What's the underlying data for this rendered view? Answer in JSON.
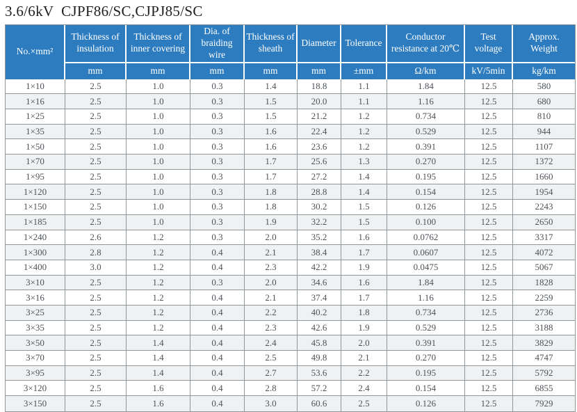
{
  "title": "3.6/6kV  CJPF86/SC,CJPJ85/SC",
  "colors": {
    "header_bg": "#2d7cbf",
    "header_text": "#ffffff",
    "row_alt_bg": "#f0f1f2",
    "border": "#8f9699",
    "body_text": "#4e5358",
    "title_text": "#1f1f1f"
  },
  "table": {
    "columns": [
      {
        "label": "No.×mm²"
      },
      {
        "label": "Thickness of insulation",
        "unit": "mm"
      },
      {
        "label": "Thickness of inner covering",
        "unit": "mm"
      },
      {
        "label": "Dia. of braiding wire",
        "unit": "mm"
      },
      {
        "label": "Thickness of sheath",
        "unit": "mm"
      },
      {
        "label": "Diameter",
        "unit": "mm"
      },
      {
        "label": "Tolerance",
        "unit": "±mm"
      },
      {
        "label": "Conductor resistance at 20℃",
        "unit": "Ω/km"
      },
      {
        "label": "Test voltage",
        "unit": "kV/5min"
      },
      {
        "label": "Approx. Weight",
        "unit": "kg/km"
      }
    ],
    "rows": [
      [
        "1×10",
        "2.5",
        "1.0",
        "0.3",
        "1.4",
        "18.8",
        "1.1",
        "1.84",
        "12.5",
        "580"
      ],
      [
        "1×16",
        "2.5",
        "1.0",
        "0.3",
        "1.5",
        "20.0",
        "1.1",
        "1.16",
        "12.5",
        "680"
      ],
      [
        "1×25",
        "2.5",
        "1.0",
        "0.3",
        "1.5",
        "21.2",
        "1.2",
        "0.734",
        "12.5",
        "810"
      ],
      [
        "1×35",
        "2.5",
        "1.0",
        "0.3",
        "1.6",
        "22.4",
        "1.2",
        "0.529",
        "12.5",
        "944"
      ],
      [
        "1×50",
        "2.5",
        "1.0",
        "0.3",
        "1.6",
        "23.6",
        "1.2",
        "0.391",
        "12.5",
        "1107"
      ],
      [
        "1×70",
        "2.5",
        "1.0",
        "0.3",
        "1.7",
        "25.6",
        "1.3",
        "0.270",
        "12.5",
        "1372"
      ],
      [
        "1×95",
        "2.5",
        "1.0",
        "0.3",
        "1.7",
        "27.2",
        "1.4",
        "0.195",
        "12.5",
        "1660"
      ],
      [
        "1×120",
        "2.5",
        "1.0",
        "0.3",
        "1.8",
        "28.8",
        "1.4",
        "0.154",
        "12.5",
        "1954"
      ],
      [
        "1×150",
        "2.5",
        "1.0",
        "0.3",
        "1.8",
        "30.2",
        "1.5",
        "0.126",
        "12.5",
        "2243"
      ],
      [
        "1×185",
        "2.5",
        "1.0",
        "0.3",
        "1.9",
        "32.2",
        "1.5",
        "0.100",
        "12.5",
        "2650"
      ],
      [
        "1×240",
        "2.6",
        "1.2",
        "0.3",
        "2.0",
        "35.2",
        "1.6",
        "0.0762",
        "12.5",
        "3317"
      ],
      [
        "1×300",
        "2.8",
        "1.2",
        "0.4",
        "2.1",
        "38.4",
        "1.7",
        "0.0607",
        "12.5",
        "4072"
      ],
      [
        "1×400",
        "3.0",
        "1.2",
        "0.4",
        "2.3",
        "42.2",
        "1.9",
        "0.0475",
        "12.5",
        "5067"
      ],
      [
        "3×10",
        "2.5",
        "1.2",
        "0.3",
        "2.0",
        "34.6",
        "1.6",
        "1.84",
        "12.5",
        "1828"
      ],
      [
        "3×16",
        "2.5",
        "1.2",
        "0.4",
        "2.1",
        "37.4",
        "1.7",
        "1.16",
        "12.5",
        "2259"
      ],
      [
        "3×25",
        "2.5",
        "1.2",
        "0.4",
        "2.2",
        "40.2",
        "1.8",
        "0.734",
        "12.5",
        "2736"
      ],
      [
        "3×35",
        "2.5",
        "1.2",
        "0.4",
        "2.3",
        "42.6",
        "1.9",
        "0.529",
        "12.5",
        "3188"
      ],
      [
        "3×50",
        "2.5",
        "1.4",
        "0.4",
        "2.4",
        "45.8",
        "2.0",
        "0.391",
        "12.5",
        "3829"
      ],
      [
        "3×70",
        "2.5",
        "1.4",
        "0.4",
        "2.5",
        "49.8",
        "2.1",
        "0.270",
        "12.5",
        "4747"
      ],
      [
        "3×95",
        "2.5",
        "1.4",
        "0.4",
        "2.7",
        "53.6",
        "2.2",
        "0.195",
        "12.5",
        "5792"
      ],
      [
        "3×120",
        "2.5",
        "1.6",
        "0.4",
        "2.8",
        "57.2",
        "2.4",
        "0.154",
        "12.5",
        "6855"
      ],
      [
        "3×150",
        "2.5",
        "1.6",
        "0.4",
        "3.0",
        "60.6",
        "2.5",
        "0.126",
        "12.5",
        "7929"
      ]
    ]
  }
}
